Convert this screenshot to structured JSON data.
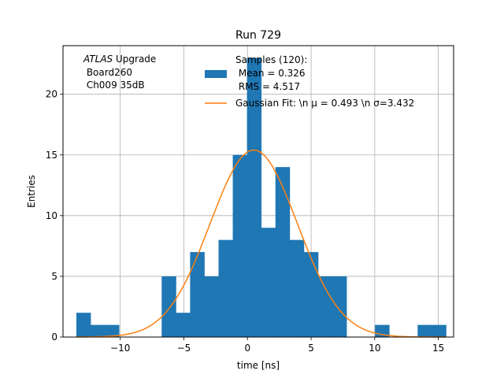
{
  "chart_data": {
    "type": "histogram",
    "title": "Run 729",
    "xlabel": "time [ns]",
    "ylabel": "Entries",
    "xlim": [
      -14.5,
      16.2
    ],
    "ylim": [
      0,
      24
    ],
    "grid": true,
    "x_ticks": [
      -10,
      -5,
      0,
      5,
      10,
      15
    ],
    "x_tick_labels": [
      "−10",
      "−5",
      "0",
      "5",
      "10",
      "15"
    ],
    "y_ticks": [
      0,
      5,
      10,
      15,
      20
    ],
    "y_tick_labels": [
      "0",
      "5",
      "10",
      "15",
      "20"
    ],
    "bin_start": -13.45,
    "bin_width": 1.1176,
    "counts": [
      2,
      1,
      1,
      0,
      0,
      0,
      5,
      2,
      7,
      5,
      8,
      15,
      23,
      9,
      14,
      8,
      7,
      5,
      5,
      0,
      0,
      1,
      0,
      0,
      1,
      1
    ],
    "fit": {
      "mu": 0.493,
      "sigma": 3.432,
      "amplitude": 15.4,
      "x_range": [
        -13.45,
        15.6
      ]
    },
    "colors": {
      "bars": "#1f77b4",
      "fit": "#ff7f0e",
      "grid": "#b0b0b0"
    },
    "legend_placement": "top-center",
    "annotation": {
      "italic_part": "ATLAS",
      "line1_rest": " Upgrade",
      "line2": " Board260",
      "line3": " Ch009 35dB"
    },
    "legend": {
      "samples_line1": "Samples (120):",
      "samples_line2": " Mean = 0.326",
      "samples_line3": " RMS = 4.517",
      "fit_label": "Gaussian Fit: \\n μ = 0.493 \\n σ=3.432"
    }
  }
}
